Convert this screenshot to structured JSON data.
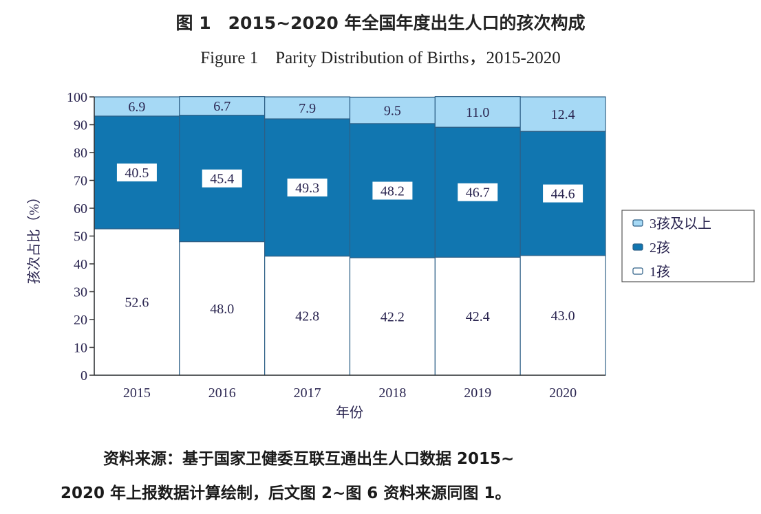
{
  "title_cn": "图 1　2015~2020 年全国年度出生人口的孩次构成",
  "title_en": "Figure 1　Parity Distribution of Births，2015-2020",
  "source_line1": "资料来源：基于国家卫健委互联互通出生人口数据 2015~",
  "source_line2": "2020 年上报数据计算绘制，后文图 2~图 6 资料来源同图 1。",
  "chart_data": {
    "type": "bar",
    "stacked": true,
    "xlabel": "年份",
    "ylabel": "孩次占比（%）",
    "ylim": [
      0,
      100
    ],
    "yticks": [
      0,
      10,
      20,
      30,
      40,
      50,
      60,
      70,
      80,
      90,
      100
    ],
    "categories": [
      "2015",
      "2016",
      "2017",
      "2018",
      "2019",
      "2020"
    ],
    "series": [
      {
        "name": "1孩",
        "values": [
          52.6,
          48.0,
          42.8,
          42.2,
          42.4,
          43.0
        ],
        "color": "#ffffff"
      },
      {
        "name": "2孩",
        "values": [
          40.5,
          45.4,
          49.3,
          48.2,
          46.7,
          44.6
        ],
        "color": "#1176b0"
      },
      {
        "name": "3孩及以上",
        "values": [
          6.9,
          6.7,
          7.9,
          9.5,
          11.0,
          12.4
        ],
        "color": "#a6d9f5"
      }
    ],
    "legend": "right",
    "legend_order": [
      "3孩及以上",
      "2孩",
      "1孩"
    ],
    "grid": false
  }
}
